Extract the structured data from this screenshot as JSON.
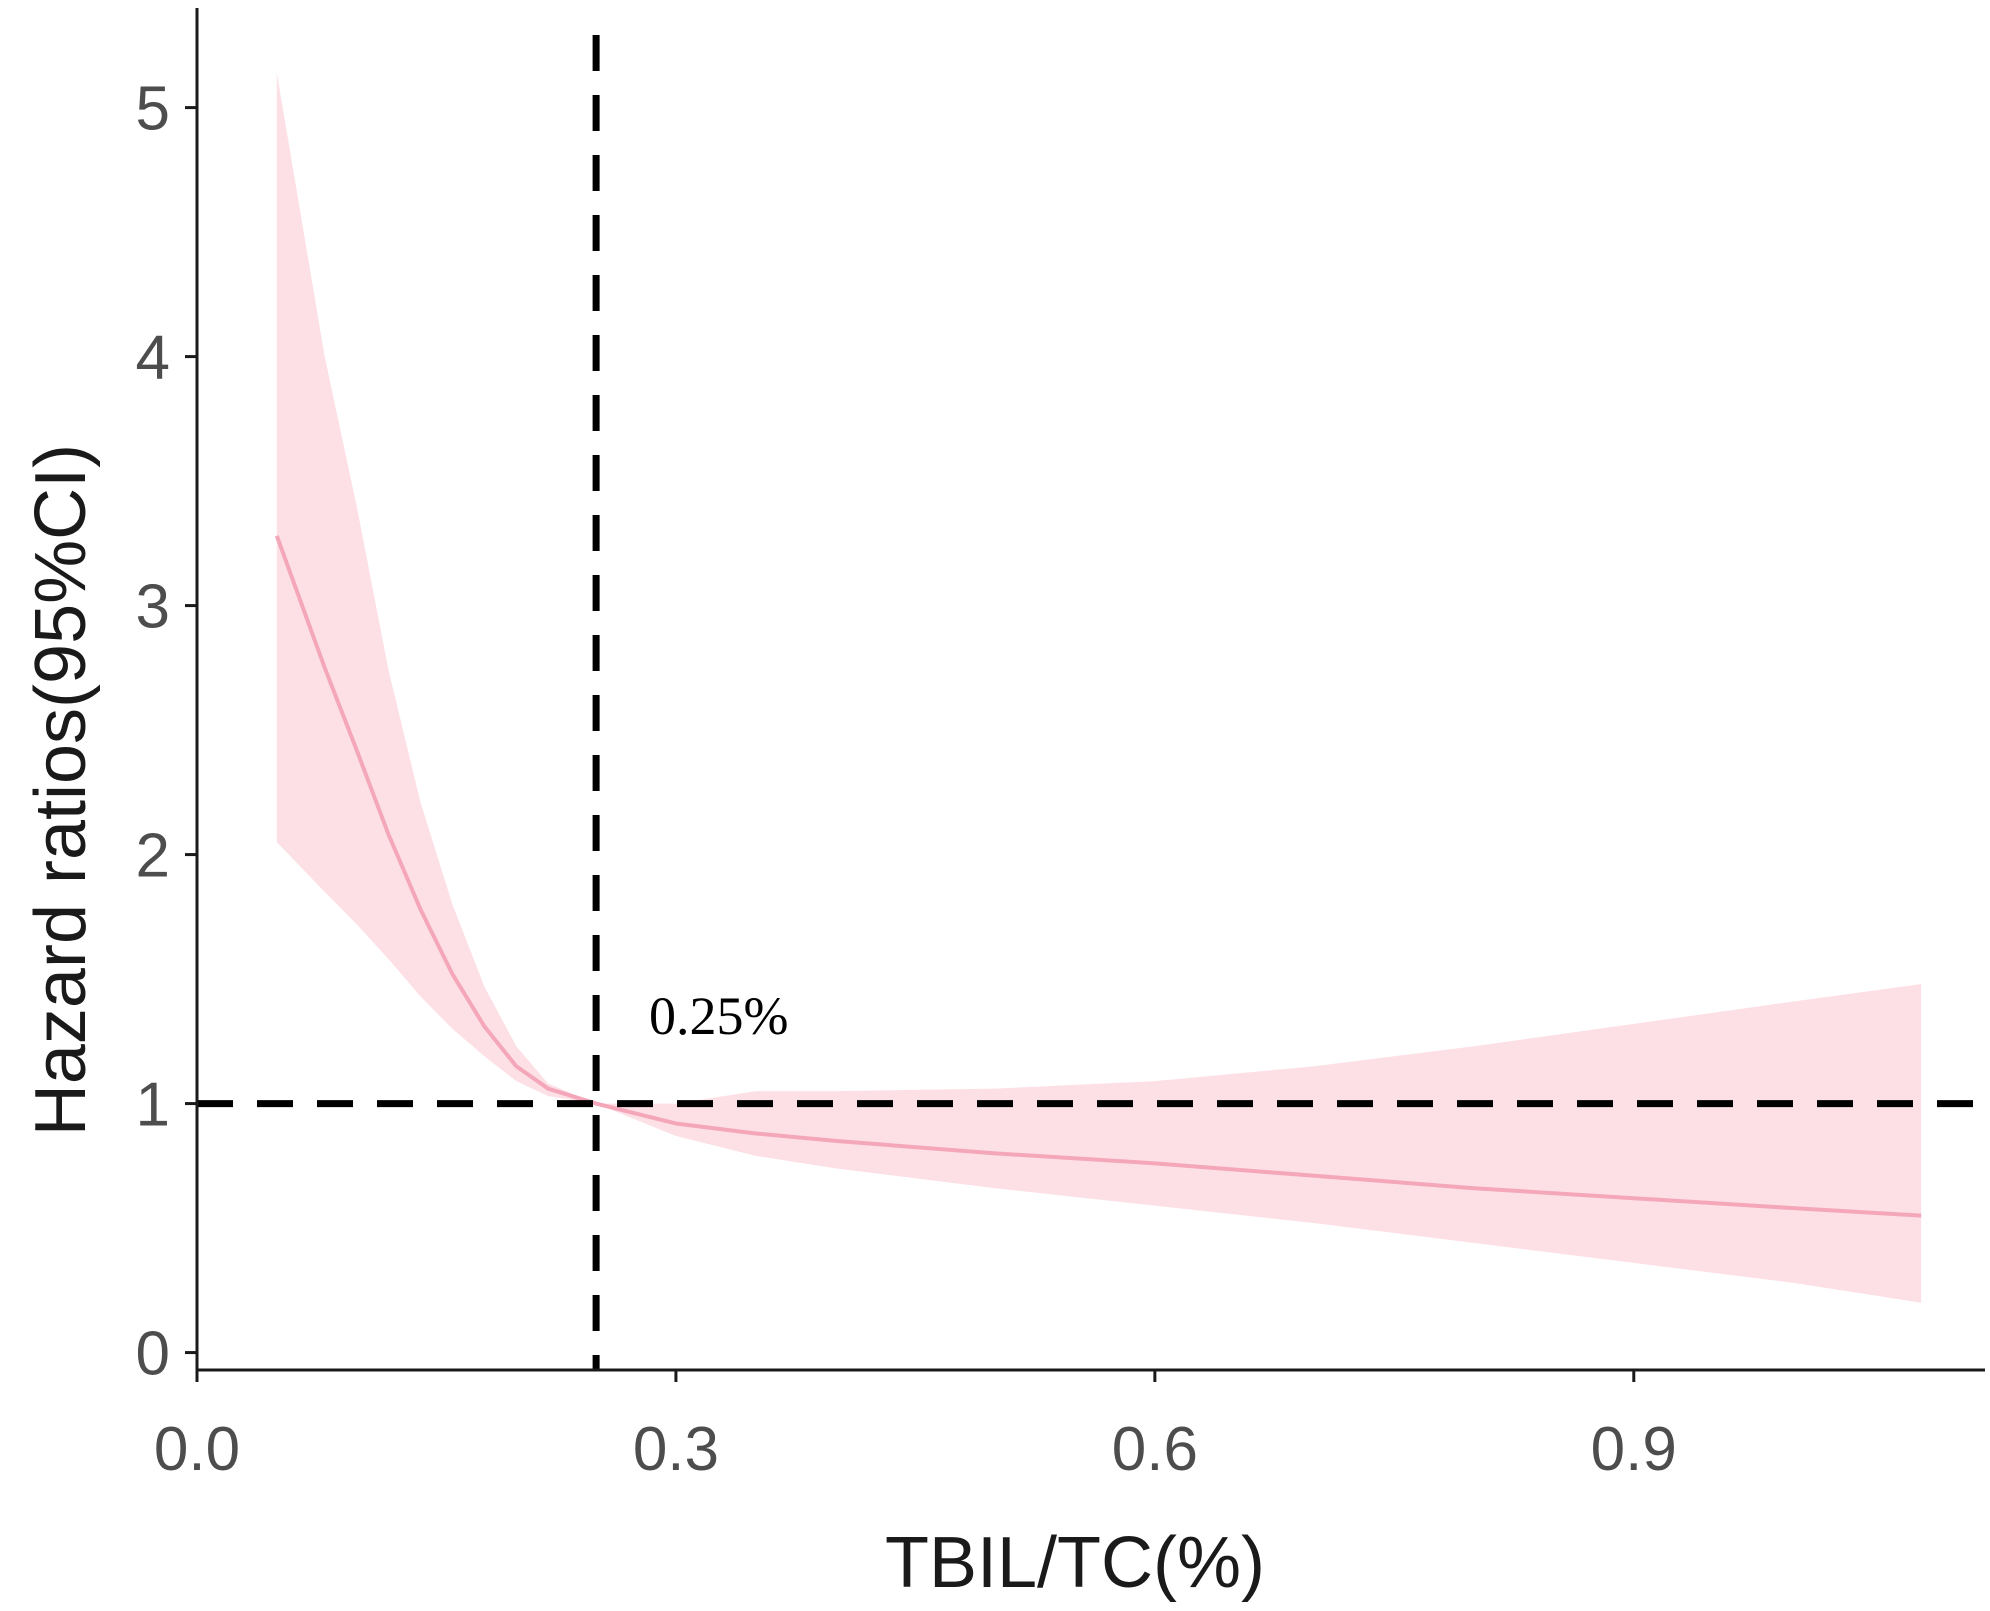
{
  "chart_data": {
    "type": "line",
    "xlabel": "TBIL/TC(%)",
    "ylabel": "Hazard ratios(95%CI)",
    "xlim": [
      0.0,
      1.12
    ],
    "ylim": [
      -0.07,
      5.4
    ],
    "x_ticks": [
      0.0,
      0.3,
      0.6,
      0.9
    ],
    "x_tick_labels": [
      "0.0",
      "0.3",
      "0.6",
      "0.9"
    ],
    "y_ticks": [
      0,
      1,
      2,
      3,
      4,
      5
    ],
    "y_tick_labels": [
      "0",
      "1",
      "2",
      "3",
      "4",
      "5"
    ],
    "grid": false,
    "colors": {
      "line": "#f4a7b9",
      "band": "#fde0e6",
      "reference": "#000000"
    },
    "series": [
      {
        "x": [
          0.05,
          0.08,
          0.1,
          0.12,
          0.14,
          0.16,
          0.18,
          0.2,
          0.22,
          0.25,
          0.3,
          0.35,
          0.4,
          0.5,
          0.6,
          0.7,
          0.8,
          0.9,
          1.0,
          1.08
        ],
        "y": [
          3.28,
          2.75,
          2.42,
          2.08,
          1.78,
          1.52,
          1.31,
          1.15,
          1.06,
          1.0,
          0.92,
          0.88,
          0.85,
          0.8,
          0.76,
          0.71,
          0.66,
          0.62,
          0.58,
          0.55
        ],
        "ci_lower": [
          2.05,
          1.85,
          1.72,
          1.58,
          1.43,
          1.3,
          1.19,
          1.09,
          1.03,
          1.0,
          0.87,
          0.79,
          0.74,
          0.66,
          0.59,
          0.52,
          0.44,
          0.36,
          0.28,
          0.2
        ],
        "ci_upper": [
          5.14,
          4.0,
          3.4,
          2.74,
          2.21,
          1.8,
          1.47,
          1.23,
          1.08,
          1.0,
          1.0,
          1.05,
          1.05,
          1.06,
          1.09,
          1.15,
          1.23,
          1.32,
          1.41,
          1.48
        ]
      }
    ],
    "reference_lines": {
      "horizontal_y": 1,
      "vertical_x": 0.25
    },
    "annotations": [
      {
        "text": "0.25%",
        "x": 0.28,
        "y": 1.3
      }
    ]
  }
}
